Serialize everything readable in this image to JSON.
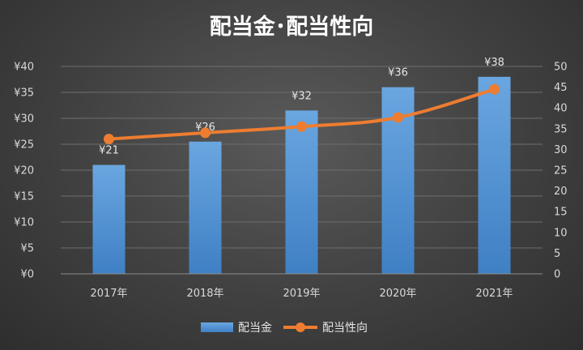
{
  "chart_data": {
    "type": "bar+line",
    "title": "配当金･配当性向",
    "categories": [
      "2017年",
      "2018年",
      "2019年",
      "2020年",
      "2021年"
    ],
    "series": [
      {
        "name": "配当金",
        "type": "bar",
        "axis": "left",
        "values": [
          21,
          25.5,
          31.5,
          36,
          38
        ],
        "data_labels": [
          "¥21",
          "¥26",
          "¥32",
          "¥36",
          "¥38"
        ],
        "color": "#5b9bd5"
      },
      {
        "name": "配当性向",
        "type": "line",
        "axis": "right",
        "values": [
          32.5,
          34,
          35.5,
          37.7,
          44.5
        ],
        "color": "#ed7d31"
      }
    ],
    "y_left": {
      "min": 0,
      "max": 40,
      "step": 5,
      "tick_labels": [
        "¥0",
        "¥5",
        "¥10",
        "¥15",
        "¥20",
        "¥25",
        "¥30",
        "¥35",
        "¥40"
      ]
    },
    "y_right": {
      "min": 0,
      "max": 50,
      "step": 5,
      "tick_labels": [
        "0",
        "5",
        "10",
        "15",
        "20",
        "25",
        "30",
        "35",
        "40",
        "45",
        "50"
      ]
    },
    "grid": true,
    "legend_position": "bottom"
  }
}
